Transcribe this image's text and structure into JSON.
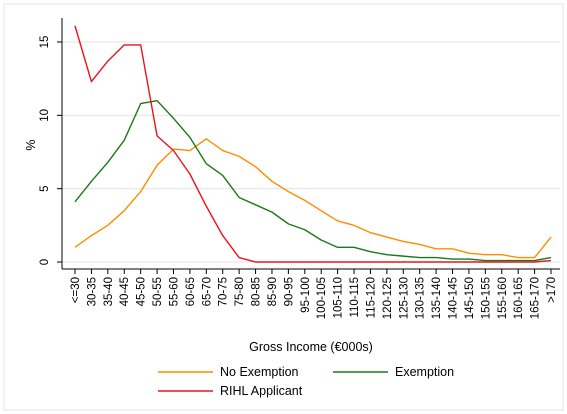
{
  "chart_data": {
    "type": "line",
    "xlabel": "Gross Income (€000s)",
    "ylabel": "%",
    "ylim": [
      0,
      16
    ],
    "yticks": [
      0,
      5,
      10,
      15
    ],
    "grid": "horizontal",
    "legend_position": "bottom",
    "categories": [
      "<=30",
      "30-35",
      "35-40",
      "40-45",
      "45-50",
      "50-55",
      "55-60",
      "60-65",
      "65-70",
      "70-75",
      "75-80",
      "80-85",
      "85-90",
      "90-95",
      "95-100",
      "100-105",
      "105-110",
      "110-115",
      "115-120",
      "120-125",
      "125-130",
      "130-135",
      "135-140",
      "140-145",
      "145-150",
      "150-155",
      "155-160",
      "160-165",
      "165-170",
      ">170"
    ],
    "series": [
      {
        "name": "No Exemption",
        "color": "#ff8c00",
        "values": [
          1.0,
          1.8,
          2.5,
          3.5,
          4.8,
          6.6,
          7.7,
          7.6,
          8.4,
          7.6,
          7.2,
          6.5,
          5.5,
          4.8,
          4.2,
          3.5,
          2.8,
          2.5,
          2.0,
          1.7,
          1.4,
          1.2,
          0.9,
          0.9,
          0.6,
          0.5,
          0.5,
          0.3,
          0.3,
          1.7
        ]
      },
      {
        "name": "Exemption",
        "color": "#1a7a1a",
        "values": [
          4.1,
          5.5,
          6.8,
          8.3,
          10.8,
          11.0,
          9.8,
          8.5,
          6.7,
          5.9,
          4.4,
          3.9,
          3.4,
          2.6,
          2.2,
          1.5,
          1.0,
          1.0,
          0.7,
          0.5,
          0.4,
          0.3,
          0.3,
          0.2,
          0.2,
          0.1,
          0.1,
          0.1,
          0.1,
          0.3
        ]
      },
      {
        "name": "RIHL Applicant",
        "color": "#e8141c",
        "values": [
          16.1,
          12.3,
          13.7,
          14.8,
          14.8,
          8.6,
          7.6,
          6.0,
          3.8,
          1.8,
          0.3,
          0.0,
          0.0,
          0.0,
          0.0,
          0.0,
          0.0,
          0.0,
          0.0,
          0.0,
          0.0,
          0.0,
          0.0,
          0.0,
          0.0,
          0.0,
          0.0,
          0.0,
          0.0,
          0.1
        ]
      }
    ]
  }
}
